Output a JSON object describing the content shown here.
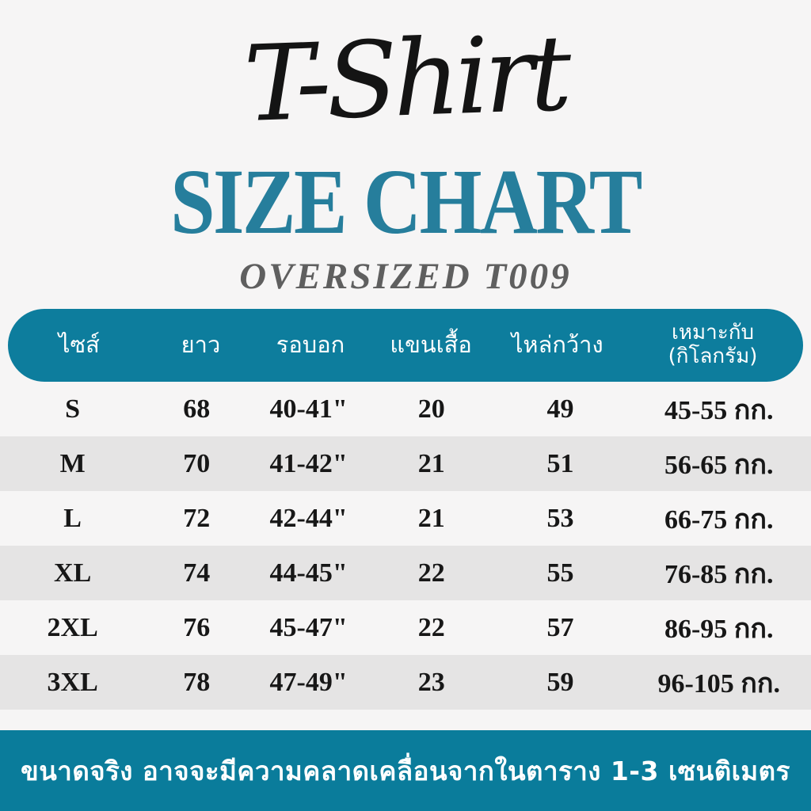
{
  "title": {
    "script": "T-Shirt",
    "main": "SIZE CHART",
    "subtitle": "OVERSIZED T009"
  },
  "table_header": {
    "size": "ไซส์",
    "length": "ยาว",
    "chest": "รอบอก",
    "sleeve": "แขนเสื้อ",
    "shoulder": "ไหล่กว้าง",
    "weight_line1": "เหมาะกับ",
    "weight_line2": "(กิโลกรัม)"
  },
  "footer": {
    "note": "ขนาดจริง อาจจะมีความคลาดเคลื่อนจากในตาราง 1-3 เซนติเมตร"
  },
  "colors": {
    "accent_teal": "#0d7d9d",
    "title_teal": "#267e9c",
    "footer_teal": "#0a7c9b",
    "row_alt_gray": "#e5e4e4",
    "background": "#f6f5f5",
    "subtitle_gray": "#5f5f5f",
    "text_black": "#171717"
  },
  "chart_data": {
    "type": "table",
    "title": "T-Shirt SIZE CHART",
    "subtitle": "OVERSIZED T009",
    "columns": [
      "ไซส์",
      "ยาว",
      "รอบอก",
      "แขนเสื้อ",
      "ไหล่กว้าง",
      "เหมาะกับ (กิโลกรัม)"
    ],
    "rows": [
      [
        "S",
        "68",
        "40-41\"",
        "20",
        "49",
        "45-55 กก."
      ],
      [
        "M",
        "70",
        "41-42\"",
        "21",
        "51",
        "56-65 กก."
      ],
      [
        "L",
        "72",
        "42-44\"",
        "21",
        "53",
        "66-75 กก."
      ],
      [
        "XL",
        "74",
        "44-45\"",
        "22",
        "55",
        "76-85 กก."
      ],
      [
        "2XL",
        "76",
        "45-47\"",
        "22",
        "57",
        "86-95 กก."
      ],
      [
        "3XL",
        "78",
        "47-49\"",
        "23",
        "59",
        "96-105 กก."
      ]
    ],
    "footnote": "ขนาดจริง อาจจะมีความคลาดเคลื่อนจากในตาราง 1-3 เซนติเมตร"
  }
}
